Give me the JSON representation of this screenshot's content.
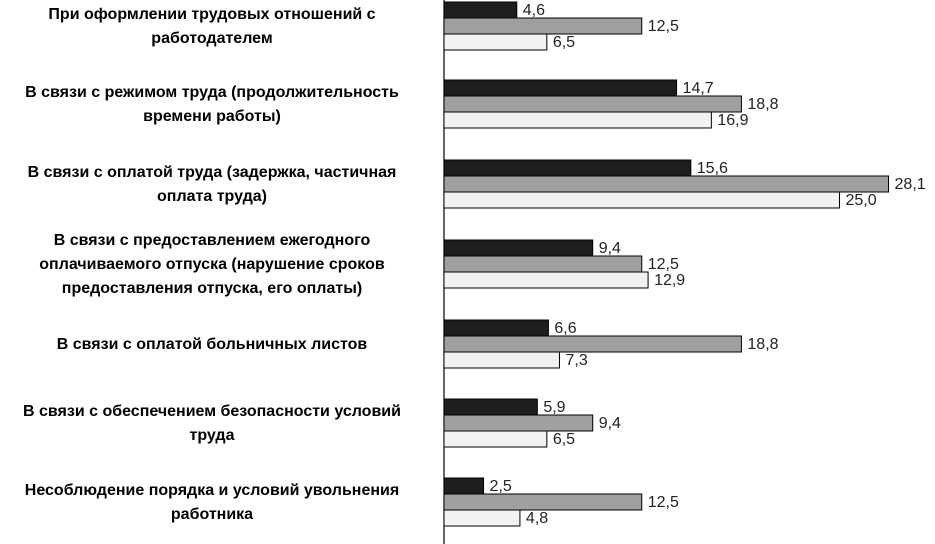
{
  "chart_data": {
    "type": "bar",
    "orientation": "horizontal",
    "categories": [
      [
        "При оформлении трудовых отношений с",
        "работодателем"
      ],
      [
        "В связи с режимом труда (продолжительность",
        "времени работы)"
      ],
      [
        "В связи с оплатой труда (задержка, частичная",
        "оплата труда)"
      ],
      [
        "В связи с предоставлением ежегодного",
        "оплачиваемого отпуска (нарушение сроков",
        "предоставления отпуска, его оплаты)"
      ],
      [
        "В связи с оплатой больничных листов"
      ],
      [
        "В связи с обеспечением безопасности условий",
        "труда"
      ],
      [
        "Несоблюдение порядка и условий увольнения",
        "работника"
      ]
    ],
    "series": [
      {
        "values": [
          4.6,
          14.7,
          15.6,
          9.4,
          6.6,
          5.9,
          2.5
        ],
        "labels": [
          "4,6",
          "14,7",
          "15,6",
          "9,4",
          "6,6",
          "5,9",
          "2,5"
        ]
      },
      {
        "values": [
          12.5,
          18.8,
          28.1,
          12.5,
          18.8,
          9.4,
          12.5
        ],
        "labels": [
          "12,5",
          "18,8",
          "28,1",
          "12,5",
          "18,8",
          "9,4",
          "12,5"
        ]
      },
      {
        "values": [
          6.5,
          16.9,
          25.0,
          12.9,
          7.3,
          6.5,
          4.8
        ],
        "labels": [
          "6,5",
          "16,9",
          "25,0",
          "12,9",
          "7,3",
          "6,5",
          "4,8"
        ]
      }
    ],
    "series_colors": [
      "#1e1e1e",
      "#a0a0a0",
      "#f2f2f2"
    ],
    "xlim": [
      0,
      28.1
    ],
    "grid": false,
    "legend": "none",
    "data_labels": true
  }
}
